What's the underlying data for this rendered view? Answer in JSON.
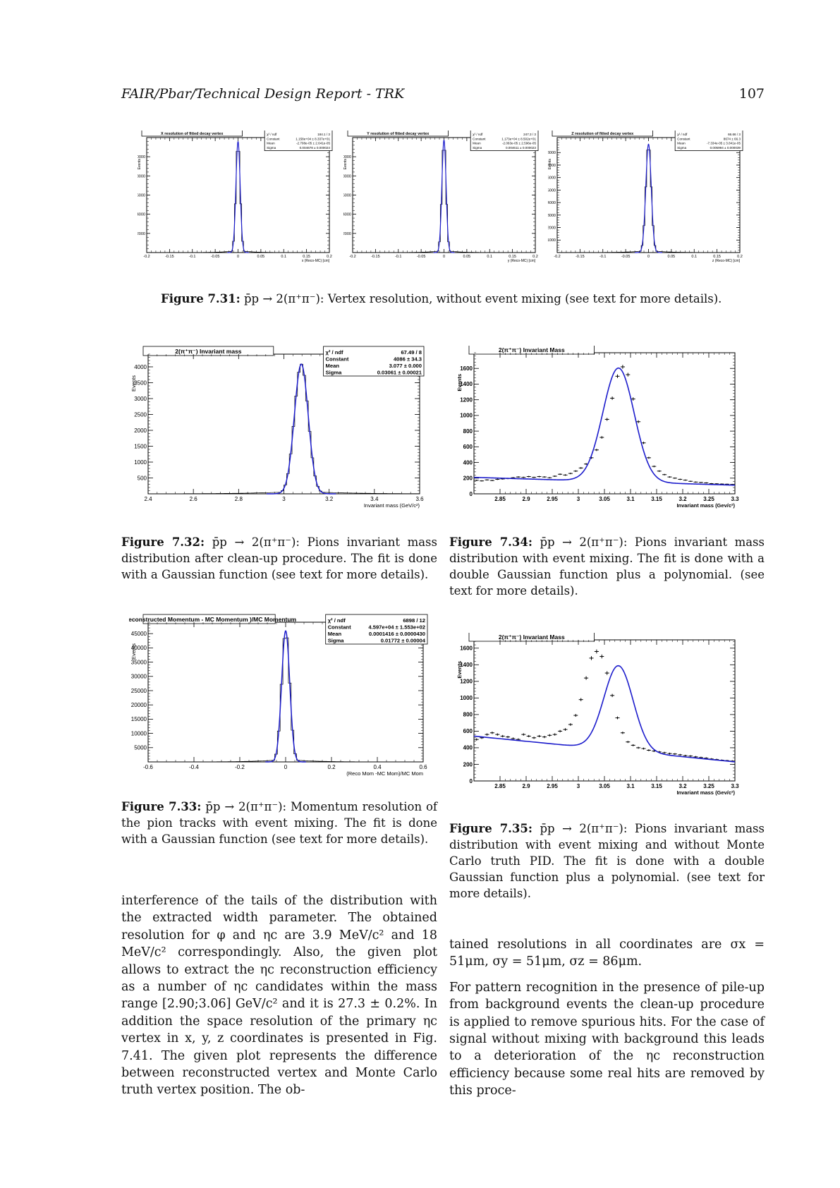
{
  "header": {
    "left": "FAIR/Pbar/Technical Design Report - TRK",
    "right": "107"
  },
  "figures": {
    "fig731": {
      "caption_label": "Figure 7.31:",
      "caption_text": "p̄p → 2(π⁺π⁻): Vertex resolution, without event mixing (see text for more details)."
    },
    "fig732": {
      "caption_label": "Figure 7.32:",
      "caption_text": "p̄p → 2(π⁺π⁻): Pions invariant mass distribution after clean-up procedure. The fit is done with a Gaussian function (see text for more details)."
    },
    "fig733": {
      "caption_label": "Figure 7.33:",
      "caption_text": "p̄p → 2(π⁺π⁻): Momentum resolution of the pion tracks with event mixing. The fit is done with a Gaussian function (see text for more details)."
    },
    "fig734": {
      "caption_label": "Figure 7.34:",
      "caption_text": "p̄p → 2(π⁺π⁻): Pions invariant mass distribution with event mixing. The fit is done with a double Gaussian function plus a polynomial. (see text for more details)."
    },
    "fig735": {
      "caption_label": "Figure 7.35:",
      "caption_text": "p̄p → 2(π⁺π⁻): Pions invariant mass distribution with event mixing and without Monte Carlo truth PID. The fit is done with a double Gaussian function plus a polynomial. (see text for more details)."
    }
  },
  "body_left": "interference of the tails of the distribution with the extracted width parameter. The obtained resolution for φ and ηc are 3.9 MeV/c² and 18 MeV/c² correspondingly. Also, the given plot allows to extract the ηc reconstruction efficiency as a number of ηc candidates within the mass range [2.90;3.06] GeV/c² and it is 27.3 ± 0.2%. In addition the space resolution of the primary ηc vertex in x, y, z coordinates is presented in Fig. 7.41. The given plot represents the difference between reconstructed vertex and Monte Carlo truth vertex position. The ob-",
  "body_right_p1": "tained resolutions in all coordinates are σx = 51μm, σy = 51μm, σz = 86μm.",
  "body_right_p2": "For pattern recognition in the presence of pile-up from background events the clean-up procedure is applied to remove spurious hits. For the case of signal without mixing with background this leads to a deterioration of the ηc reconstruction efficiency because some real hits are removed by this proce-",
  "chart_data": [
    {
      "id": "vx",
      "type": "histogram",
      "title": "X resolution of fitted decay vertex",
      "xlabel": "x (Reco-MC) [cm]",
      "ylabel": "Events",
      "xlim": [
        -0.2,
        0.2
      ],
      "ylim": [
        0,
        12000
      ],
      "xticks": [
        "-0.2",
        "-0.15",
        "-0.1",
        "-0.05",
        "0",
        "0.05",
        "0.1",
        "0.15",
        "0.2"
      ],
      "yticks": [
        2000,
        4000,
        6000,
        8000,
        10000
      ],
      "stats": [
        [
          "χ² / ndf",
          "184.1 / 3"
        ],
        [
          "Constant",
          "1.158e+04 ± 8.337e+01"
        ],
        [
          "Mean",
          "-2.708e-05 ± 2.641e-05"
        ],
        [
          "Sigma",
          "0.004678 ± 0.000024"
        ]
      ],
      "fit": {
        "constant": 11580,
        "mean": 0.0,
        "sigma": 0.004678
      }
    },
    {
      "id": "vy",
      "type": "histogram",
      "title": "Y resolution of fitted decay vertex",
      "xlabel": "y (Reco-MC) [cm]",
      "ylabel": "Events",
      "xlim": [
        -0.2,
        0.2
      ],
      "ylim": [
        0,
        12000
      ],
      "xticks": [
        "-0.2",
        "-0.15",
        "-0.1",
        "-0.05",
        "0",
        "0.05",
        "0.1",
        "0.15",
        "0.2"
      ],
      "yticks": [
        2000,
        4000,
        6000,
        8000,
        10000
      ],
      "stats": [
        [
          "χ² / ndf",
          "247.3 / 3"
        ],
        [
          "Constant",
          "1.173e+04 ± 8.502e+01"
        ],
        [
          "Mean",
          "-2.063e-05 ± 2.596e-05"
        ],
        [
          "Sigma",
          "0.004611 ± 0.000023"
        ]
      ],
      "fit": {
        "constant": 11730,
        "mean": 0.0,
        "sigma": 0.004611
      }
    },
    {
      "id": "vz",
      "type": "histogram",
      "title": "Z resolution of fitted decay vertex",
      "xlabel": "z (Reco-MC) [cm]",
      "ylabel": "Events",
      "xlim": [
        -0.2,
        0.2
      ],
      "ylim": [
        0,
        9200
      ],
      "xticks": [
        "-0.2",
        "-0.15",
        "-0.1",
        "-0.05",
        "0",
        "0.05",
        "0.1",
        "0.15",
        "0.2"
      ],
      "yticks": [
        1000,
        2000,
        3000,
        4000,
        5000,
        6000,
        7000,
        8000
      ],
      "stats": [
        [
          "χ² / ndf",
          "66.66 / 3"
        ],
        [
          "Constant",
          "8674 ± 66.3"
        ],
        [
          "Mean",
          "-7.334e-05 ± 3.841e-05"
        ],
        [
          "Sigma",
          "0.005994 ± 0.000039"
        ]
      ],
      "fit": {
        "constant": 8674,
        "mean": 0.0,
        "sigma": 0.005994
      }
    },
    {
      "id": "im732",
      "type": "histogram",
      "title": "2(π⁺π⁻) Invariant mass",
      "xlabel": "Invariant mass (GeV/c²)",
      "ylabel": "Events",
      "xlim": [
        2.4,
        3.6
      ],
      "ylim": [
        0,
        4400
      ],
      "xticks": [
        "2.4",
        "2.6",
        "2.8",
        "3",
        "3.2",
        "3.4",
        "3.6"
      ],
      "yticks": [
        500,
        1000,
        1500,
        2000,
        2500,
        3000,
        3500,
        4000
      ],
      "stats": [
        [
          "χ² / ndf",
          "67.49 / 8"
        ],
        [
          "Constant",
          "4086 ± 34.3"
        ],
        [
          "Mean",
          "3.077 ± 0.000"
        ],
        [
          "Sigma",
          "0.03061 ± 0.00021"
        ]
      ],
      "fit": {
        "constant": 4086,
        "mean": 3.077,
        "sigma": 0.03061
      }
    },
    {
      "id": "mom733",
      "type": "histogram",
      "title": "(Reconstructed Momentum - MC Momentum )/MC Momentum",
      "xlabel": "(Reco Mom -MC Mom)/MC Mom",
      "ylabel": "Events",
      "xlim": [
        -0.6,
        0.6
      ],
      "ylim": [
        0,
        49000
      ],
      "xticks": [
        "-0.6",
        "-0.4",
        "-0.2",
        "0",
        "0.2",
        "0.4",
        "0.6"
      ],
      "yticks": [
        5000,
        10000,
        15000,
        20000,
        25000,
        30000,
        35000,
        40000,
        45000
      ],
      "stats": [
        [
          "χ² / ndf",
          "6898 / 12"
        ],
        [
          "Constant",
          "4.597e+04 ± 1.553e+02"
        ],
        [
          "Mean",
          "0.0001416 ± 0.0000430"
        ],
        [
          "Sigma",
          "0.01772 ± 0.00004"
        ]
      ],
      "fit": {
        "constant": 45970,
        "mean": 0.0001416,
        "sigma": 0.01772
      }
    },
    {
      "id": "im734",
      "type": "scatter",
      "title": "2(π⁺π⁻) Invariant Mass",
      "xlabel": "Invariant mass (Gev/c²)",
      "ylabel": "Events",
      "xlim": [
        2.8,
        3.3
      ],
      "ylim": [
        0,
        1800
      ],
      "xticks": [
        "2.85",
        "2.9",
        "2.95",
        "3",
        "3.05",
        "3.1",
        "3.15",
        "3.2",
        "3.25",
        "3.3"
      ],
      "yticks": [
        0,
        200,
        400,
        600,
        800,
        1000,
        1200,
        1400,
        1600
      ],
      "x": [
        2.805,
        2.815,
        2.825,
        2.835,
        2.845,
        2.855,
        2.865,
        2.875,
        2.885,
        2.895,
        2.905,
        2.915,
        2.925,
        2.935,
        2.945,
        2.955,
        2.965,
        2.975,
        2.985,
        2.995,
        3.005,
        3.015,
        3.025,
        3.035,
        3.045,
        3.055,
        3.065,
        3.075,
        3.085,
        3.095,
        3.105,
        3.115,
        3.125,
        3.135,
        3.145,
        3.155,
        3.165,
        3.175,
        3.185,
        3.195,
        3.205,
        3.215,
        3.225,
        3.235,
        3.245,
        3.255,
        3.265,
        3.275,
        3.285,
        3.295
      ],
      "y": [
        172,
        165,
        178,
        170,
        185,
        190,
        195,
        205,
        215,
        210,
        220,
        210,
        220,
        215,
        205,
        225,
        250,
        240,
        260,
        290,
        330,
        380,
        460,
        560,
        720,
        950,
        1220,
        1500,
        1620,
        1520,
        1210,
        920,
        650,
        460,
        350,
        290,
        245,
        215,
        200,
        185,
        175,
        160,
        150,
        145,
        140,
        130,
        128,
        125,
        123,
        120
      ],
      "fit": {
        "amplitude": 1450,
        "mean": 3.077,
        "sigma": 0.03,
        "bkg_start": 210,
        "bkg_end": 110
      }
    },
    {
      "id": "im735",
      "type": "scatter",
      "title": "2(π⁺π⁻) Invariant Mass",
      "xlabel": "Invariant mass (Gev/c²)",
      "ylabel": "Events",
      "xlim": [
        2.8,
        3.3
      ],
      "ylim": [
        0,
        1700
      ],
      "xticks": [
        "2.85",
        "2.9",
        "2.95",
        "3",
        "3.05",
        "3.1",
        "3.15",
        "3.2",
        "3.25",
        "3.3"
      ],
      "yticks": [
        0,
        200,
        400,
        600,
        800,
        1000,
        1200,
        1400,
        1600
      ],
      "x": [
        2.805,
        2.815,
        2.825,
        2.835,
        2.845,
        2.855,
        2.865,
        2.875,
        2.885,
        2.895,
        2.905,
        2.915,
        2.925,
        2.935,
        2.945,
        2.955,
        2.965,
        2.975,
        2.985,
        2.995,
        3.005,
        3.015,
        3.025,
        3.035,
        3.045,
        3.055,
        3.065,
        3.075,
        3.085,
        3.095,
        3.105,
        3.115,
        3.125,
        3.135,
        3.145,
        3.155,
        3.165,
        3.175,
        3.185,
        3.195,
        3.205,
        3.215,
        3.225,
        3.235,
        3.245,
        3.255,
        3.265,
        3.275,
        3.285,
        3.295
      ],
      "y": [
        500,
        520,
        560,
        580,
        560,
        540,
        530,
        510,
        500,
        560,
        540,
        520,
        540,
        530,
        550,
        560,
        600,
        620,
        680,
        790,
        980,
        1240,
        1480,
        1560,
        1500,
        1300,
        1030,
        760,
        580,
        470,
        430,
        400,
        390,
        370,
        360,
        350,
        340,
        330,
        325,
        315,
        305,
        300,
        290,
        282,
        275,
        265,
        258,
        250,
        245,
        240
      ],
      "fit": {
        "amplitude": 1020,
        "mean": 3.077,
        "sigma": 0.028,
        "bkg_start": 540,
        "bkg_end": 230
      }
    }
  ]
}
